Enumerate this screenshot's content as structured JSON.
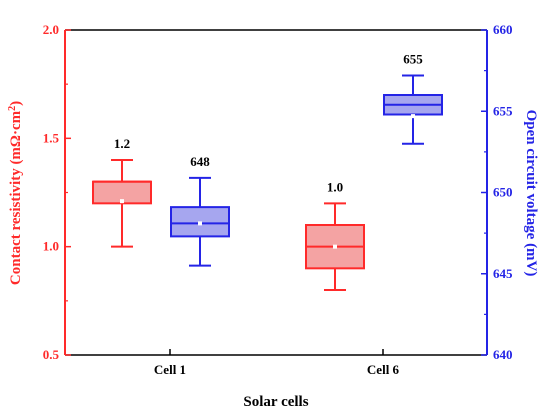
{
  "chart_data": {
    "type": "box",
    "xlabel": "Solar cells",
    "categories": [
      "Cell 1",
      "Cell 6"
    ],
    "left_axis": {
      "label_main": "Contact resistivity (mΩ·cm",
      "label_sup": "2",
      "label_end": ")",
      "ylim": [
        0.5,
        2.0
      ],
      "ticks": [
        "0.5",
        "1.0",
        "1.5",
        "2.0"
      ],
      "color": "#ff2a2a"
    },
    "right_axis": {
      "label": "Open circuit voltage (mV)",
      "ylim": [
        640,
        660
      ],
      "ticks": [
        "640",
        "645",
        "650",
        "655",
        "660"
      ],
      "color": "#2424e6"
    },
    "series": [
      {
        "axis": "left",
        "color": "#ff2a2a",
        "fill": "#f4a3a3",
        "boxes": [
          {
            "category": "Cell 1",
            "whisker_low": 1.0,
            "q1": 1.2,
            "median": 1.3,
            "q3": 1.3,
            "whisker_high": 1.4,
            "mean": 1.21,
            "label": "1.2"
          },
          {
            "category": "Cell 6",
            "whisker_low": 0.8,
            "q1": 0.9,
            "median": 1.0,
            "q3": 1.1,
            "whisker_high": 1.2,
            "mean": 1.0,
            "label": "1.0"
          }
        ]
      },
      {
        "axis": "right",
        "color": "#2424e6",
        "fill": "#a6a6ef",
        "boxes": [
          {
            "category": "Cell 1",
            "whisker_low": 645.5,
            "q1": 647.3,
            "median": 648.1,
            "q3": 649.1,
            "whisker_high": 650.9,
            "mean": 648.1,
            "label": "648"
          },
          {
            "category": "Cell 6",
            "whisker_low": 653.0,
            "q1": 654.8,
            "median": 655.4,
            "q3": 656.0,
            "whisker_high": 657.2,
            "mean": 654.7,
            "label": "655"
          }
        ]
      }
    ]
  }
}
